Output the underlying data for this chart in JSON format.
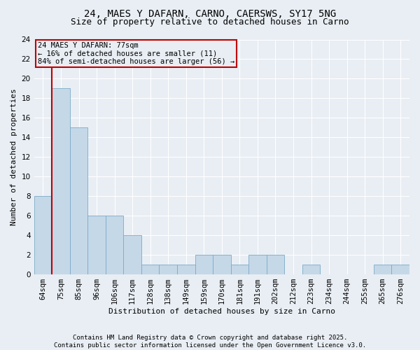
{
  "title1": "24, MAES Y DAFARN, CARNO, CAERSWS, SY17 5NG",
  "title2": "Size of property relative to detached houses in Carno",
  "xlabel": "Distribution of detached houses by size in Carno",
  "ylabel": "Number of detached properties",
  "bins": [
    "64sqm",
    "75sqm",
    "85sqm",
    "96sqm",
    "106sqm",
    "117sqm",
    "128sqm",
    "138sqm",
    "149sqm",
    "159sqm",
    "170sqm",
    "181sqm",
    "191sqm",
    "202sqm",
    "212sqm",
    "223sqm",
    "234sqm",
    "244sqm",
    "255sqm",
    "265sqm",
    "276sqm"
  ],
  "values": [
    8,
    19,
    15,
    6,
    6,
    4,
    1,
    1,
    1,
    2,
    2,
    1,
    2,
    2,
    0,
    1,
    0,
    0,
    0,
    1,
    1
  ],
  "highlight_bin": 1,
  "highlight_color": "#c00000",
  "bar_color": "#c5d8e8",
  "bar_edge_color": "#7aaac8",
  "annotation_text": "24 MAES Y DAFARN: 77sqm\n← 16% of detached houses are smaller (11)\n84% of semi-detached houses are larger (56) →",
  "ylim": [
    0,
    24
  ],
  "yticks": [
    0,
    2,
    4,
    6,
    8,
    10,
    12,
    14,
    16,
    18,
    20,
    22,
    24
  ],
  "footer": "Contains HM Land Registry data © Crown copyright and database right 2025.\nContains public sector information licensed under the Open Government Licence v3.0.",
  "bg_color": "#e8eef4",
  "grid_color": "#ffffff",
  "title_fontsize": 10,
  "subtitle_fontsize": 9,
  "annotation_fontsize": 7.5,
  "axis_fontsize": 7.5,
  "ylabel_fontsize": 8,
  "xlabel_fontsize": 8
}
